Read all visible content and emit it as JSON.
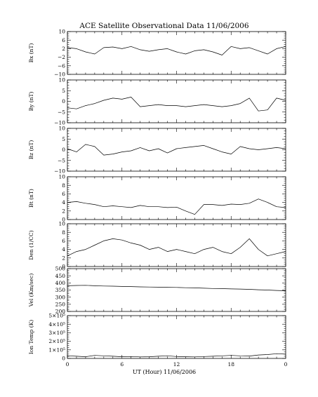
{
  "figure": {
    "title": "ACE Satellite Observational Data   11/06/2006",
    "xlabel": "UT (Hour)   11/06/2006",
    "x_ticks": [
      "0",
      "6",
      "12",
      "18",
      "0"
    ]
  },
  "chart_data": [
    {
      "type": "line",
      "ylabel": "Bx (nT)",
      "ylim": [
        -10,
        10
      ],
      "y_ticks": [
        -10,
        -6,
        -2,
        2,
        6,
        10
      ],
      "y_tick_labels": [
        "−10",
        "−6",
        "−2",
        "2",
        "6",
        "10"
      ],
      "x": [
        0,
        1,
        2,
        3,
        4,
        5,
        6,
        7,
        8,
        9,
        10,
        11,
        12,
        13,
        14,
        15,
        16,
        17,
        18,
        19,
        20,
        21,
        22,
        23,
        24
      ],
      "values": [
        2.5,
        2.0,
        0.5,
        -0.5,
        2.5,
        2.8,
        2.0,
        3.0,
        1.5,
        0.8,
        1.5,
        2.0,
        0.5,
        -0.5,
        1.0,
        1.5,
        0.5,
        -1.0,
        3.0,
        2.0,
        2.5,
        1.0,
        -0.5,
        2.0,
        3.0
      ]
    },
    {
      "type": "line",
      "ylabel": "By (nT)",
      "ylim": [
        -10,
        10
      ],
      "y_ticks": [
        -10,
        -5,
        0,
        5,
        10
      ],
      "y_tick_labels": [
        "−10",
        "−5",
        "0",
        "5",
        "10"
      ],
      "x": [
        0,
        1,
        2,
        3,
        4,
        5,
        6,
        7,
        8,
        9,
        10,
        11,
        12,
        13,
        14,
        15,
        16,
        17,
        18,
        19,
        20,
        21,
        22,
        23,
        24
      ],
      "values": [
        -3.0,
        -3.5,
        -2.0,
        -1.0,
        0.5,
        1.5,
        1.0,
        2.0,
        -2.5,
        -2.0,
        -1.5,
        -2.0,
        -2.0,
        -2.5,
        -2.0,
        -1.5,
        -2.0,
        -2.5,
        -2.0,
        -1.0,
        1.5,
        -4.5,
        -4.0,
        1.5,
        0.5
      ]
    },
    {
      "type": "line",
      "ylabel": "Bz (nT)",
      "ylim": [
        -10,
        10
      ],
      "y_ticks": [
        -10,
        -5,
        0,
        5,
        10
      ],
      "y_tick_labels": [
        "−10",
        "−5",
        "0",
        "5",
        "10"
      ],
      "x": [
        0,
        1,
        2,
        3,
        4,
        5,
        6,
        7,
        8,
        9,
        10,
        11,
        12,
        13,
        14,
        15,
        16,
        17,
        18,
        19,
        20,
        21,
        22,
        23,
        24
      ],
      "values": [
        0.5,
        -1.0,
        2.5,
        1.5,
        -2.5,
        -2.0,
        -1.0,
        -0.5,
        1.0,
        -0.5,
        0.5,
        -1.5,
        0.5,
        1.0,
        1.5,
        2.0,
        0.5,
        -1.0,
        -2.0,
        1.5,
        0.5,
        0.0,
        0.5,
        1.0,
        0.5
      ]
    },
    {
      "type": "line",
      "ylabel": "Bt (nT)",
      "ylim": [
        0,
        10
      ],
      "y_ticks": [
        0,
        2,
        4,
        6,
        8,
        10
      ],
      "y_tick_labels": [
        "0",
        "2",
        "4",
        "6",
        "8",
        "10"
      ],
      "x": [
        0,
        1,
        2,
        3,
        4,
        5,
        6,
        7,
        8,
        9,
        10,
        11,
        12,
        13,
        14,
        15,
        16,
        17,
        18,
        19,
        20,
        21,
        22,
        23,
        24
      ],
      "values": [
        4.0,
        4.2,
        3.8,
        3.5,
        3.0,
        3.2,
        3.0,
        2.8,
        3.3,
        3.0,
        3.0,
        2.8,
        2.9,
        2.0,
        1.2,
        3.5,
        3.5,
        3.3,
        3.6,
        3.5,
        3.8,
        4.8,
        4.0,
        3.0,
        2.8
      ]
    },
    {
      "type": "line",
      "ylabel": "Den (1/CC)",
      "ylim": [
        0,
        10
      ],
      "y_ticks": [
        0,
        2,
        4,
        6,
        8,
        10
      ],
      "y_tick_labels": [
        "0",
        "2",
        "4",
        "6",
        "8",
        "10"
      ],
      "x": [
        0,
        1,
        2,
        3,
        4,
        5,
        6,
        7,
        8,
        9,
        10,
        11,
        12,
        13,
        14,
        15,
        16,
        17,
        18,
        19,
        20,
        21,
        22,
        23,
        24
      ],
      "values": [
        2.5,
        3.5,
        4.0,
        5.0,
        6.0,
        6.5,
        6.2,
        5.5,
        5.0,
        4.0,
        4.5,
        3.5,
        4.0,
        3.5,
        3.0,
        4.0,
        4.5,
        3.5,
        3.0,
        4.5,
        6.5,
        4.0,
        2.5,
        3.0,
        3.5
      ]
    },
    {
      "type": "line",
      "ylabel": "Vel (Km/sec)",
      "ylim": [
        200,
        500
      ],
      "y_ticks": [
        200,
        250,
        300,
        350,
        400,
        450,
        500
      ],
      "y_tick_labels": [
        "200",
        "250",
        "300",
        "350",
        "400",
        "450",
        "500"
      ],
      "x": [
        0,
        1,
        2,
        3,
        4,
        5,
        6,
        7,
        8,
        9,
        10,
        11,
        12,
        13,
        14,
        15,
        16,
        17,
        18,
        19,
        20,
        21,
        22,
        23,
        24
      ],
      "values": [
        380,
        382,
        383,
        380,
        378,
        377,
        375,
        374,
        372,
        371,
        370,
        369,
        368,
        366,
        365,
        363,
        361,
        360,
        358,
        357,
        355,
        352,
        350,
        347,
        345
      ]
    },
    {
      "type": "line",
      "ylabel": "Ion Temp (K)",
      "ylim": [
        0,
        500000
      ],
      "y_ticks": [
        0,
        100000,
        200000,
        300000,
        400000,
        500000
      ],
      "y_tick_labels": [
        "0",
        "1×10⁵",
        "2×10⁵",
        "3×10⁵",
        "4×10⁵",
        "5×10⁵"
      ],
      "x": [
        0,
        1,
        2,
        3,
        4,
        5,
        6,
        7,
        8,
        9,
        10,
        11,
        12,
        13,
        14,
        15,
        16,
        17,
        18,
        19,
        20,
        21,
        22,
        23,
        24
      ],
      "values": [
        30000,
        25000,
        20000,
        35000,
        30000,
        25000,
        20000,
        22000,
        18000,
        20000,
        25000,
        30000,
        22000,
        20000,
        18000,
        22000,
        25000,
        30000,
        35000,
        30000,
        28000,
        40000,
        45000,
        55000,
        50000
      ]
    }
  ]
}
